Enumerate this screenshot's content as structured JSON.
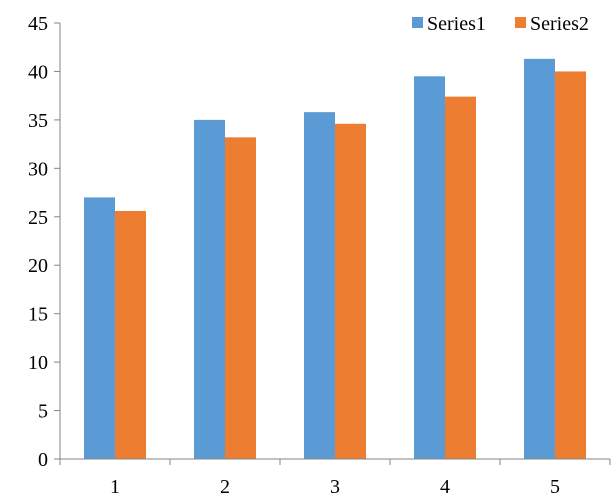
{
  "chart_data": {
    "type": "bar",
    "categories": [
      "1",
      "2",
      "3",
      "4",
      "5"
    ],
    "series": [
      {
        "name": "Series1",
        "color": "#5b9bd5",
        "values": [
          27,
          35,
          35.8,
          39.5,
          41.3
        ]
      },
      {
        "name": "Series2",
        "color": "#ed7d31",
        "values": [
          25.6,
          33.2,
          34.6,
          37.4,
          40
        ]
      }
    ],
    "y_ticks": [
      "0",
      "5",
      "10",
      "15",
      "20",
      "25",
      "30",
      "35",
      "40",
      "45"
    ],
    "ylim": [
      0,
      45
    ],
    "grid": false,
    "legend_position": "top-right"
  }
}
